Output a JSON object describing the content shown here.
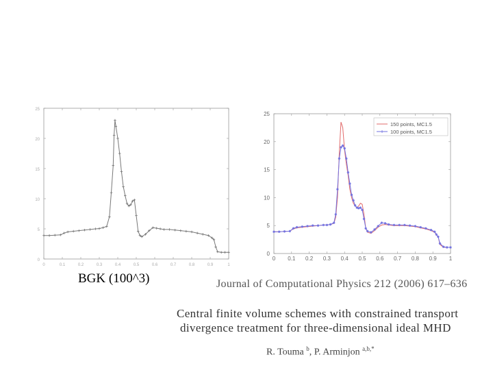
{
  "chart_data": [
    {
      "type": "scatter",
      "title": "",
      "xlabel": "",
      "ylabel": "",
      "xlim": [
        0,
        1
      ],
      "ylim": [
        0,
        25
      ],
      "x_ticks": [
        "0",
        "0.1",
        "0.2",
        "0.3",
        "0.4",
        "0.5",
        "0.6",
        "0.7",
        "0.8",
        "0.9",
        "1"
      ],
      "y_ticks": [
        "0",
        "5",
        "10",
        "15",
        "20",
        "25"
      ],
      "series": [
        {
          "name": "BGK",
          "marker": "plus",
          "color": "#777777",
          "x": [
            0,
            0.03,
            0.06,
            0.09,
            0.11,
            0.13,
            0.16,
            0.19,
            0.22,
            0.25,
            0.28,
            0.3,
            0.32,
            0.34,
            0.355,
            0.365,
            0.375,
            0.38,
            0.385,
            0.39,
            0.4,
            0.41,
            0.42,
            0.43,
            0.44,
            0.45,
            0.46,
            0.47,
            0.48,
            0.49,
            0.5,
            0.51,
            0.52,
            0.53,
            0.55,
            0.57,
            0.59,
            0.61,
            0.63,
            0.65,
            0.68,
            0.71,
            0.74,
            0.77,
            0.8,
            0.83,
            0.86,
            0.89,
            0.91,
            0.92,
            0.93,
            0.94,
            0.96,
            0.98,
            1.0
          ],
          "y": [
            3.9,
            3.9,
            3.95,
            4.0,
            4.3,
            4.5,
            4.6,
            4.7,
            4.8,
            4.9,
            5.0,
            5.05,
            5.2,
            5.4,
            7.0,
            11.0,
            15.5,
            20.5,
            23.0,
            22.0,
            20.0,
            17.5,
            14.5,
            12.0,
            10.5,
            9.2,
            8.8,
            9.0,
            9.6,
            9.8,
            7.2,
            4.6,
            3.9,
            3.7,
            4.1,
            4.7,
            5.2,
            5.1,
            5.0,
            4.9,
            4.9,
            4.8,
            4.7,
            4.6,
            4.5,
            4.3,
            4.1,
            3.9,
            3.5,
            3.2,
            2.0,
            1.2,
            1.1,
            1.1,
            1.1
          ]
        }
      ]
    },
    {
      "type": "line",
      "title": "",
      "xlabel": "",
      "ylabel": "",
      "xlim": [
        0,
        1
      ],
      "ylim": [
        0,
        25
      ],
      "x_ticks": [
        "0",
        "0.1",
        "0.2",
        "0.3",
        "0.4",
        "0.5",
        "0.6",
        "0.7",
        "0.8",
        "0.9",
        "1"
      ],
      "y_ticks": [
        "0",
        "5",
        "10",
        "15",
        "20",
        "25"
      ],
      "legend": "top-right",
      "series": [
        {
          "name": "150 points, MC1.5",
          "color": "#e26a6a",
          "x": [
            0,
            0.03,
            0.06,
            0.09,
            0.11,
            0.13,
            0.16,
            0.19,
            0.22,
            0.25,
            0.28,
            0.3,
            0.32,
            0.34,
            0.35,
            0.36,
            0.37,
            0.38,
            0.39,
            0.4,
            0.41,
            0.42,
            0.43,
            0.44,
            0.45,
            0.46,
            0.47,
            0.48,
            0.49,
            0.5,
            0.51,
            0.52,
            0.53,
            0.55,
            0.57,
            0.59,
            0.61,
            0.63,
            0.65,
            0.68,
            0.71,
            0.74,
            0.77,
            0.8,
            0.83,
            0.86,
            0.89,
            0.91,
            0.92,
            0.93,
            0.94,
            0.96,
            0.98,
            1.0
          ],
          "y": [
            3.9,
            3.9,
            3.95,
            4.0,
            4.4,
            4.6,
            4.7,
            4.8,
            4.9,
            5.0,
            5.1,
            5.1,
            5.2,
            5.4,
            6.5,
            10.0,
            18.0,
            23.5,
            22.5,
            18.5,
            16.0,
            14.0,
            11.5,
            10.0,
            9.0,
            8.5,
            8.2,
            8.5,
            9.0,
            8.8,
            7.0,
            4.5,
            3.8,
            3.6,
            4.1,
            4.7,
            5.1,
            5.2,
            5.1,
            5.0,
            5.0,
            5.0,
            4.9,
            4.8,
            4.6,
            4.4,
            4.1,
            3.8,
            3.3,
            3.0,
            1.6,
            1.1,
            1.1,
            1.1
          ]
        },
        {
          "name": "100 points, MC1.5",
          "color": "#7070e0",
          "marker": "star",
          "x": [
            0,
            0.03,
            0.06,
            0.09,
            0.11,
            0.13,
            0.16,
            0.19,
            0.22,
            0.25,
            0.28,
            0.3,
            0.32,
            0.34,
            0.35,
            0.36,
            0.37,
            0.38,
            0.39,
            0.4,
            0.41,
            0.42,
            0.43,
            0.44,
            0.45,
            0.46,
            0.47,
            0.48,
            0.49,
            0.5,
            0.51,
            0.52,
            0.53,
            0.55,
            0.57,
            0.59,
            0.61,
            0.63,
            0.65,
            0.68,
            0.71,
            0.74,
            0.77,
            0.8,
            0.83,
            0.86,
            0.89,
            0.91,
            0.92,
            0.93,
            0.94,
            0.96,
            0.98,
            1.0
          ],
          "y": [
            3.9,
            3.9,
            3.95,
            4.0,
            4.5,
            4.7,
            4.8,
            4.9,
            5.0,
            5.0,
            5.1,
            5.1,
            5.2,
            5.5,
            7.0,
            11.5,
            17.0,
            19.0,
            19.3,
            18.8,
            17.0,
            14.5,
            12.5,
            10.5,
            9.5,
            8.6,
            8.2,
            8.1,
            8.2,
            7.8,
            6.2,
            4.5,
            4.0,
            3.8,
            4.3,
            4.9,
            5.5,
            5.4,
            5.2,
            5.1,
            5.1,
            5.1,
            5.0,
            4.9,
            4.7,
            4.5,
            4.2,
            3.9,
            3.4,
            3.0,
            1.8,
            1.2,
            1.1,
            1.1
          ]
        }
      ]
    }
  ],
  "captions": {
    "bgk": "BGK (100^3)",
    "journal": "Journal of Computational Physics 212 (2006) 617–636",
    "title_line1": "Central finite volume schemes with constrained transport",
    "title_line2": "divergence treatment for three-dimensional ideal MHD",
    "author1": "R. Touma",
    "author1_sup": "b",
    "author_sep": ", ",
    "author2": "P. Arminjon",
    "author2_sup": "a,b,*"
  }
}
